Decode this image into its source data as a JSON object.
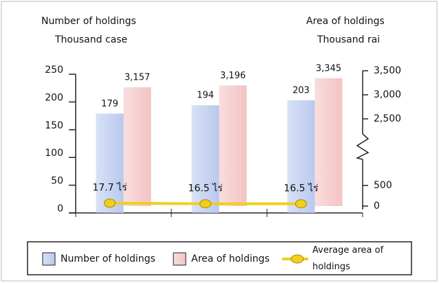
{
  "chart_data": {
    "type": "bar",
    "y_title": [
      "Number of holdings",
      "Thousand case"
    ],
    "y2_title": [
      "Area of holdings",
      "Thousand rai"
    ],
    "categories": [
      null,
      null,
      null
    ],
    "series": [
      {
        "name": "Number of holdings",
        "type": "bar",
        "color": "#b9c9ee",
        "values": [
          179,
          194,
          203
        ]
      },
      {
        "name": "Area of holdings",
        "type": "bar",
        "color": "#f3c3c3",
        "axis": "y2",
        "values": [
          3157,
          3196,
          3345
        ],
        "value_labels": [
          "3,157",
          "3,196",
          "3,345"
        ]
      },
      {
        "name": "Average area of holdings",
        "type": "line",
        "color": "#f0cf1c",
        "values": [
          17.7,
          16.5,
          16.5
        ],
        "value_labels": [
          "17.7 ไร่",
          "16.5 ไร่",
          "16.5 ไร่"
        ]
      }
    ],
    "ylim": [
      0,
      250
    ],
    "yticks": [
      0,
      50,
      100,
      150,
      200,
      250
    ],
    "y2lim": [
      0,
      3500
    ],
    "y2break": [
      500,
      2500
    ],
    "y2ticks": [
      0,
      500,
      {
        "value": 2500,
        "label": "2,500"
      },
      {
        "value": 3000,
        "label": "3,000"
      },
      {
        "value": 3500,
        "label": "3,500"
      }
    ],
    "legend": "bottom"
  }
}
